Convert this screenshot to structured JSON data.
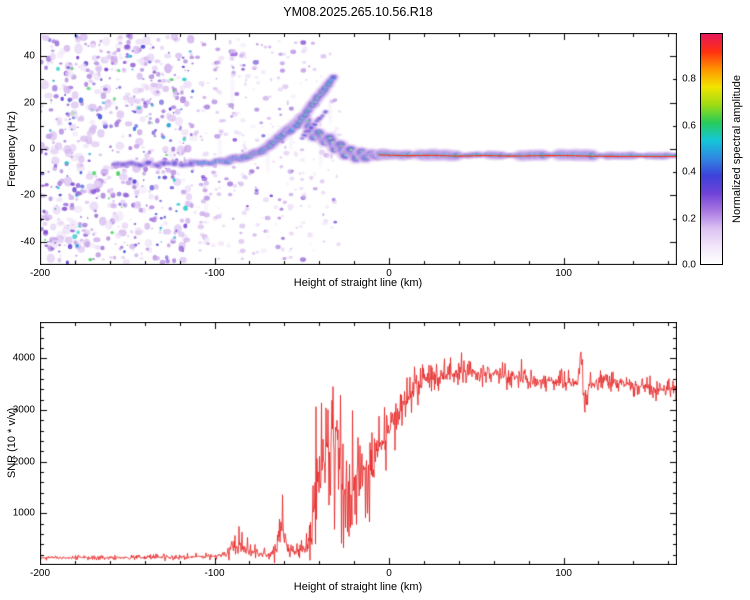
{
  "title": "YM08.2025.265.10.56.R18",
  "chart_data": [
    {
      "type": "heatmap",
      "xlabel": "Height of straight line (km)",
      "ylabel": "Frequency (Hz)",
      "xlim": [
        -200,
        165
      ],
      "ylim": [
        -50,
        50
      ],
      "xticks": [
        -200,
        -100,
        0,
        100
      ],
      "x_minor_step": 20,
      "yticks": [
        -40,
        -20,
        0,
        20,
        40
      ],
      "y_minor_step": 10,
      "colorbar": {
        "label": "Normalized spectral amplitude",
        "ticks": [
          0,
          0.2,
          0.4,
          0.6,
          0.8
        ],
        "range": [
          0,
          1
        ],
        "colormap": [
          "#ffffff",
          "#f2e6fa",
          "#dcc2f2",
          "#a978e2",
          "#6f42d8",
          "#3c42da",
          "#2f88e2",
          "#14c6d8",
          "#28cc5a",
          "#9edc14",
          "#f2e400",
          "#ff9500",
          "#ff3010",
          "#e6185c"
        ]
      },
      "noise": {
        "seed": 1234,
        "dense_range": [
          -200,
          -112
        ],
        "dense_count": 760,
        "columns": [
          [
            -106,
            40
          ],
          [
            -98,
            32
          ],
          [
            -90,
            26
          ],
          [
            -83,
            30
          ],
          [
            -76,
            24
          ],
          [
            -69,
            20
          ],
          [
            -62,
            26
          ],
          [
            -56,
            16
          ],
          [
            -50,
            20
          ],
          [
            -44,
            12
          ],
          [
            -38,
            14
          ],
          [
            -32,
            9
          ]
        ],
        "scatter_range": [
          -112,
          -28
        ],
        "scatter_count": 70,
        "palette_light": [
          "#efe2f8",
          "#e5d2f5",
          "#d9bff0",
          "#cdaaeb"
        ],
        "palette_mid": [
          "#b48ae0",
          "#9f6fd8",
          "#8a55d4"
        ],
        "palette_dark": [
          "#7a3fd0",
          "#5b35d0",
          "#4638d6"
        ],
        "palette_hot": [
          "#3a55e0",
          "#2f9fe0",
          "#20c8c8",
          "#35cc50"
        ]
      },
      "trace": {
        "points": [
          [
            -158,
            -6,
            0.45
          ],
          [
            -153,
            -7,
            0.5
          ],
          [
            -148,
            -6,
            0.5
          ],
          [
            -143,
            -7,
            0.45
          ],
          [
            -138,
            -6,
            0.5
          ],
          [
            -133,
            -7,
            0.5
          ],
          [
            -128,
            -6,
            0.45
          ],
          [
            -123,
            -6,
            0.5
          ],
          [
            -118,
            -7,
            0.5
          ],
          [
            -113,
            -6,
            0.5
          ],
          [
            -108,
            -6,
            0.55
          ],
          [
            -103,
            -6,
            0.5
          ],
          [
            -98,
            -5,
            0.55
          ],
          [
            -93,
            -5,
            0.6
          ],
          [
            -88,
            -4,
            0.6
          ],
          [
            -83,
            -4,
            0.65
          ],
          [
            -78,
            -2,
            0.7
          ],
          [
            -73,
            -1,
            0.7
          ],
          [
            -68,
            2,
            0.75
          ],
          [
            -63,
            5,
            0.8
          ],
          [
            -58,
            8,
            0.8
          ],
          [
            -53,
            11,
            0.85
          ],
          [
            -49,
            14,
            0.8
          ],
          [
            -46,
            10,
            0.75
          ],
          [
            -43,
            5,
            0.8
          ],
          [
            -40,
            7,
            0.85
          ],
          [
            -37,
            3,
            0.9
          ],
          [
            -34,
            5,
            0.85
          ],
          [
            -31,
            0,
            0.9
          ],
          [
            -28,
            2,
            0.95
          ],
          [
            -25,
            -3,
            0.9
          ],
          [
            -22,
            0,
            0.92
          ],
          [
            -19,
            -4,
            0.9
          ],
          [
            -16,
            -1,
            0.92
          ],
          [
            -13,
            -4,
            0.95
          ],
          [
            -10,
            -2,
            0.95
          ],
          [
            -7,
            -3,
            0.97
          ],
          [
            -4,
            -2,
            1.0
          ],
          [
            -1,
            -3,
            1.0
          ]
        ]
      },
      "branches": [
        {
          "points": [
            [
              -57,
              7,
              0.5
            ],
            [
              -53,
              10,
              0.65
            ],
            [
              -50,
              13,
              0.72
            ],
            [
              -47,
              16,
              0.8
            ],
            [
              -44,
              19,
              0.88
            ],
            [
              -41,
              22,
              0.9
            ],
            [
              -38,
              25,
              0.88
            ],
            [
              -35,
              28,
              0.72
            ],
            [
              -32,
              31,
              0.5
            ]
          ]
        },
        {
          "points": [
            [
              -50,
              5,
              0.32
            ],
            [
              -45,
              9,
              0.35
            ],
            [
              -40,
              13,
              0.35
            ],
            [
              -36,
              16,
              0.3
            ]
          ]
        }
      ],
      "band": {
        "x_range": [
          -5,
          165
        ],
        "y_points": [
          [
            -5,
            -2.2
          ],
          [
            10,
            -2.6
          ],
          [
            25,
            -2.4
          ],
          [
            40,
            -2.8
          ],
          [
            55,
            -2.5
          ],
          [
            70,
            -2.8
          ],
          [
            85,
            -2.6
          ],
          [
            100,
            -2.5
          ],
          [
            115,
            -2.8
          ],
          [
            130,
            -2.9
          ],
          [
            150,
            -2.9
          ],
          [
            165,
            -2.9
          ]
        ],
        "base_thickness": 1.7,
        "thick_segments": [
          [
            -5,
            13,
            2.2
          ],
          [
            16,
            40,
            2.6
          ],
          [
            44,
            52,
            0.8
          ],
          [
            56,
            66,
            1.6
          ],
          [
            74,
            90,
            2.4
          ],
          [
            96,
            118,
            2.8
          ],
          [
            124,
            141,
            1.2
          ],
          [
            147,
            160,
            1.0
          ]
        ]
      }
    },
    {
      "type": "line",
      "name": "SNR",
      "color": "#e62020",
      "xlabel": "Height of straight line (km)",
      "ylabel": "SNR (10 * v/v)",
      "xlim": [
        -200,
        165
      ],
      "ylim": [
        0,
        4700
      ],
      "xticks": [
        -200,
        -100,
        0,
        100
      ],
      "x_minor_step": 20,
      "yticks": [
        1000,
        2000,
        3000,
        4000
      ],
      "y_minor_step": 200,
      "envelope": [
        [
          -200,
          140,
          70
        ],
        [
          -150,
          140,
          70
        ],
        [
          -115,
          150,
          80
        ],
        [
          -100,
          170,
          90
        ],
        [
          -92,
          220,
          150
        ],
        [
          -86,
          420,
          700
        ],
        [
          -82,
          300,
          350
        ],
        [
          -76,
          230,
          200
        ],
        [
          -70,
          200,
          150
        ],
        [
          -64,
          300,
          500
        ],
        [
          -61,
          900,
          1600
        ],
        [
          -58,
          260,
          220
        ],
        [
          -52,
          260,
          200
        ],
        [
          -47,
          350,
          300
        ],
        [
          -44,
          700,
          900
        ],
        [
          -41,
          1600,
          2600
        ],
        [
          -37,
          2000,
          2700
        ],
        [
          -33,
          2300,
          2500
        ],
        [
          -29,
          2600,
          2200
        ],
        [
          -26,
          1500,
          2200
        ],
        [
          -22,
          1700,
          1900
        ],
        [
          -18,
          1300,
          1600
        ],
        [
          -14,
          1900,
          1500
        ],
        [
          -10,
          1700,
          1400
        ],
        [
          -6,
          2200,
          1100
        ],
        [
          -2,
          2500,
          1000
        ],
        [
          2,
          2800,
          800
        ],
        [
          8,
          3100,
          600
        ],
        [
          14,
          3400,
          500
        ],
        [
          20,
          3550,
          450
        ],
        [
          30,
          3650,
          350
        ],
        [
          45,
          3750,
          350
        ],
        [
          60,
          3700,
          320
        ],
        [
          75,
          3600,
          320
        ],
        [
          90,
          3570,
          300
        ],
        [
          102,
          3520,
          280
        ],
        [
          108,
          3560,
          300
        ],
        [
          110,
          4150,
          500
        ],
        [
          112,
          3100,
          500
        ],
        [
          115,
          3500,
          300
        ],
        [
          125,
          3550,
          300
        ],
        [
          140,
          3480,
          280
        ],
        [
          155,
          3400,
          280
        ],
        [
          165,
          3380,
          280
        ]
      ]
    }
  ]
}
